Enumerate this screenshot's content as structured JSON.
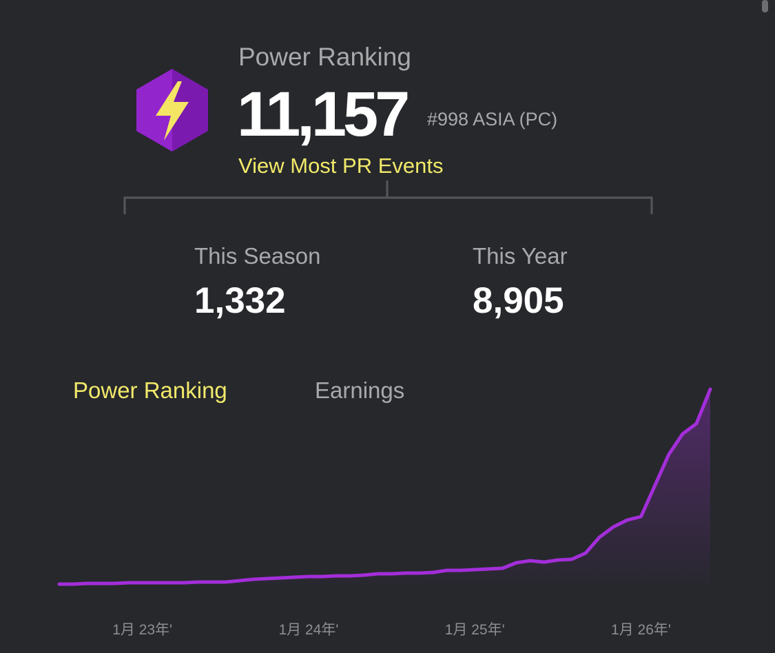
{
  "header": {
    "title": "Power Ranking",
    "score": "11,157",
    "rank": "#998 ASIA (PC)",
    "link": "View Most PR Events"
  },
  "stats": [
    {
      "label": "This Season",
      "value": "1,332"
    },
    {
      "label": "This Year",
      "value": "8,905"
    }
  ],
  "tabs": [
    "Power Ranking",
    "Earnings"
  ],
  "chart_data": {
    "type": "area",
    "color": "#a32ed9",
    "x": [
      "2022-07",
      "2022-08",
      "2022-09",
      "2022-10",
      "2022-11",
      "2022-12",
      "2023-01",
      "2023-02",
      "2023-03",
      "2023-04",
      "2023-05",
      "2023-06",
      "2023-07",
      "2023-08",
      "2023-09",
      "2023-10",
      "2023-11",
      "2023-12",
      "2024-01",
      "2024-02",
      "2024-03",
      "2024-04",
      "2024-05",
      "2024-06",
      "2024-07",
      "2024-08",
      "2024-09",
      "2024-10",
      "2024-11",
      "2024-12",
      "2025-01",
      "2025-02",
      "2025-03",
      "2025-04",
      "2025-05",
      "2025-06",
      "2025-07",
      "2025-08",
      "2025-09",
      "2025-10",
      "2025-11",
      "2025-12",
      "2026-01",
      "2026-02",
      "2026-03",
      "2026-04",
      "2026-05",
      "2026-06"
    ],
    "values": [
      0,
      0,
      36,
      36,
      36,
      71,
      71,
      71,
      71,
      71,
      107,
      107,
      107,
      178,
      249,
      285,
      320,
      356,
      392,
      392,
      427,
      427,
      463,
      534,
      534,
      570,
      570,
      605,
      712,
      712,
      748,
      783,
      819,
      1104,
      1210,
      1139,
      1246,
      1282,
      1602,
      2421,
      2955,
      3311,
      3489,
      5091,
      6693,
      7761,
      8295,
      10075
    ],
    "xticks": [
      {
        "value": "2023-01",
        "label": "1月 23年'"
      },
      {
        "value": "2024-01",
        "label": "1月 24年'"
      },
      {
        "value": "2025-01",
        "label": "1月 25年'"
      },
      {
        "value": "2026-01",
        "label": "1月 26年'"
      }
    ]
  }
}
